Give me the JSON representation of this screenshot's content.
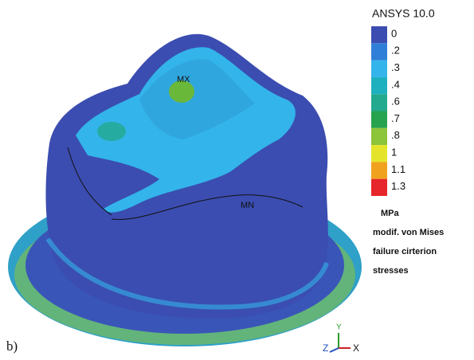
{
  "header": {
    "title": "ANSYS 10.0"
  },
  "legend": {
    "levels": [
      {
        "label": "0",
        "color": "#3b4db0"
      },
      {
        "label": ".2",
        "color": "#2f7fd8"
      },
      {
        "label": ".3",
        "color": "#33b4ea"
      },
      {
        "label": ".4",
        "color": "#1fb0c0"
      },
      {
        "label": ".6",
        "color": "#23a98e"
      },
      {
        "label": ".7",
        "color": "#27a24f"
      },
      {
        "label": ".8",
        "color": "#8cc43a"
      },
      {
        "label": "1",
        "color": "#e4e52a"
      },
      {
        "label": "1.1",
        "color": "#f0a21e"
      },
      {
        "label": "1.3",
        "color": "#e6262a"
      }
    ],
    "unit": "MPa",
    "caption": [
      "modif. von Mises",
      "failure cirterion",
      "stresses"
    ]
  },
  "labels": {
    "max": "MX",
    "min": "MN"
  },
  "panel": "b)",
  "axes": {
    "x": "X",
    "y": "Y",
    "z": "Z"
  }
}
